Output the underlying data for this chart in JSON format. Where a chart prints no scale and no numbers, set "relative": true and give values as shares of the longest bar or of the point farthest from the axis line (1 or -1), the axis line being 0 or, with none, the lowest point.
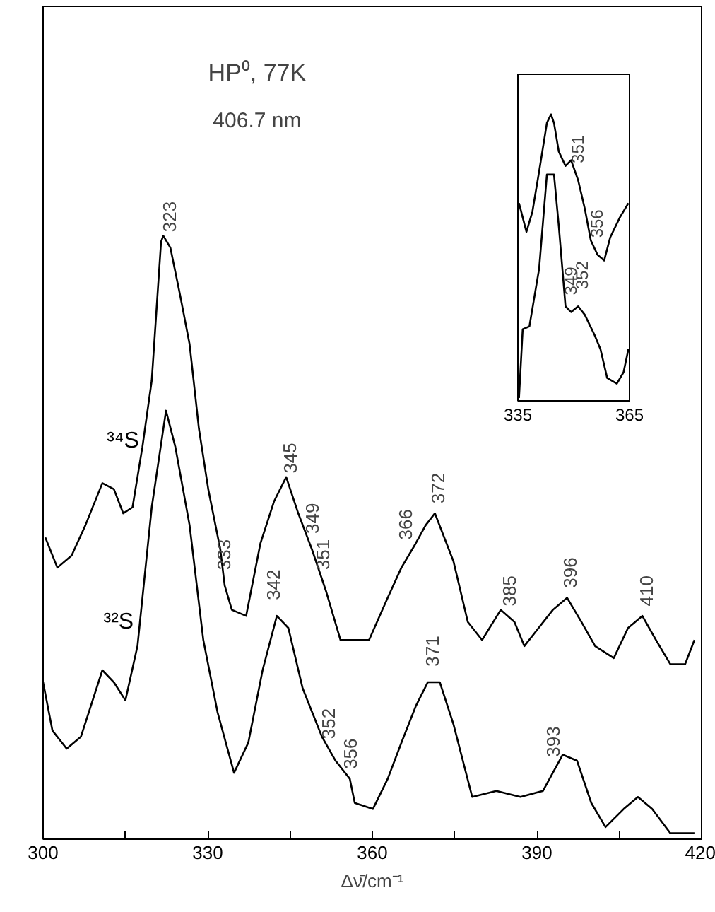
{
  "chart_data": [
    {
      "type": "line",
      "title": "HP⁰, 77K",
      "subtitle": "406.7 nm",
      "xlabel": "Δν̄/cm⁻¹",
      "relative": true,
      "xlim": [
        300,
        420
      ],
      "xticks": [
        300,
        {
          "value": 315,
          "label": null
        },
        330,
        {
          "value": 345,
          "label": null
        },
        360,
        {
          "value": 375,
          "label": null
        },
        390,
        {
          "value": 405,
          "label": null
        },
        420
      ],
      "tick_labels": "x",
      "grid": false,
      "series": [
        {
          "name": "³⁴S",
          "color": "#000000",
          "x": [
            300.4,
            302.6,
            305.2,
            307.7,
            310.8,
            312.9,
            314.6,
            316.3,
            318.1,
            319.8,
            321.5,
            321.9,
            323.2,
            325.0,
            326.7,
            328.4,
            330.1,
            332.3,
            333.1,
            334.4,
            337.0,
            339.6,
            342.1,
            344.3,
            346.5,
            349.0,
            351.6,
            354.2,
            356.8,
            359.4,
            362.8,
            365.3,
            367.9,
            369.7,
            371.4,
            373.1,
            374.8,
            377.4,
            380.0,
            383.4,
            385.9,
            387.7,
            390.3,
            392.9,
            395.5,
            398.1,
            400.6,
            404.0,
            406.6,
            409.2,
            411.7,
            414.3,
            417.0,
            418.7
          ],
          "values": [
            0.5,
            0.45,
            0.47,
            0.52,
            0.59,
            0.58,
            0.54,
            0.55,
            0.65,
            0.76,
            0.99,
            1.0,
            0.98,
            0.9,
            0.82,
            0.68,
            0.58,
            0.48,
            0.42,
            0.38,
            0.37,
            0.49,
            0.56,
            0.6,
            0.54,
            0.48,
            0.41,
            0.33,
            0.33,
            0.33,
            0.4,
            0.45,
            0.49,
            0.52,
            0.54,
            0.5,
            0.46,
            0.36,
            0.33,
            0.38,
            0.36,
            0.32,
            0.35,
            0.38,
            0.4,
            0.36,
            0.32,
            0.3,
            0.35,
            0.37,
            0.33,
            0.29,
            0.29,
            0.33
          ]
        },
        {
          "name": "³²S",
          "color": "#000000",
          "x": [
            300.0,
            301.7,
            304.3,
            306.9,
            310.8,
            312.9,
            315.0,
            317.2,
            319.8,
            322.4,
            324.1,
            326.7,
            329.2,
            331.8,
            334.8,
            337.4,
            340.0,
            342.6,
            344.7,
            347.3,
            350.8,
            353.3,
            355.9,
            356.8,
            360.1,
            362.8,
            365.3,
            367.9,
            370.1,
            372.3,
            374.8,
            378.2,
            382.6,
            387.0,
            391.1,
            394.7,
            397.3,
            399.9,
            402.5,
            405.8,
            408.4,
            411.0,
            414.3,
            418.7
          ],
          "values": [
            0.26,
            0.18,
            0.15,
            0.17,
            0.28,
            0.26,
            0.23,
            0.32,
            0.55,
            0.71,
            0.65,
            0.52,
            0.33,
            0.21,
            0.11,
            0.16,
            0.28,
            0.37,
            0.35,
            0.25,
            0.17,
            0.13,
            0.1,
            0.06,
            0.05,
            0.1,
            0.16,
            0.22,
            0.26,
            0.26,
            0.19,
            0.07,
            0.08,
            0.07,
            0.08,
            0.14,
            0.13,
            0.06,
            0.02,
            0.05,
            0.07,
            0.05,
            0.01,
            0.01
          ]
        }
      ],
      "annotations": [
        {
          "text": "323",
          "x": 323,
          "y": 0.98
        },
        {
          "text": "345",
          "x": 345,
          "y": 0.58
        },
        {
          "text": "349",
          "x": 349,
          "y": 0.48
        },
        {
          "text": "333",
          "x": 333,
          "y": 0.42
        },
        {
          "text": "351",
          "x": 351,
          "y": 0.42
        },
        {
          "text": "366",
          "x": 366,
          "y": 0.47
        },
        {
          "text": "372",
          "x": 372,
          "y": 0.53
        },
        {
          "text": "385",
          "x": 385,
          "y": 0.36
        },
        {
          "text": "396",
          "x": 396,
          "y": 0.39
        },
        {
          "text": "410",
          "x": 410,
          "y": 0.36
        },
        {
          "text": "342",
          "x": 342,
          "y": 0.37
        },
        {
          "text": "352",
          "x": 352,
          "y": 0.14
        },
        {
          "text": "356",
          "x": 356,
          "y": 0.09
        },
        {
          "text": "371",
          "x": 371,
          "y": 0.26
        },
        {
          "text": "393",
          "x": 393,
          "y": 0.11
        }
      ]
    },
    {
      "type": "line",
      "relative": true,
      "xlim": [
        335,
        365
      ],
      "xticks": [
        335,
        365
      ],
      "tick_labels": "x",
      "grid": false,
      "series": [
        {
          "color": "#000000",
          "x": [
            335.3,
            337.3,
            338.9,
            340.7,
            342.8,
            343.9,
            344.7,
            346.0,
            347.8,
            349.3,
            351.2,
            353.0,
            354.6,
            356.4,
            358.2,
            359.8,
            362.4,
            364.7
          ],
          "values": [
            0.69,
            0.59,
            0.66,
            0.8,
            0.97,
            1.0,
            0.97,
            0.87,
            0.82,
            0.84,
            0.77,
            0.67,
            0.56,
            0.51,
            0.49,
            0.57,
            0.64,
            0.69
          ]
        },
        {
          "color": "#000000",
          "x": [
            335.3,
            336.3,
            338.1,
            340.7,
            342.8,
            344.7,
            346.0,
            347.8,
            349.3,
            351.2,
            353.0,
            355.6,
            357.2,
            359.0,
            361.6,
            363.4,
            364.7
          ],
          "values": [
            0.01,
            0.25,
            0.26,
            0.46,
            0.79,
            0.79,
            0.61,
            0.33,
            0.31,
            0.33,
            0.3,
            0.23,
            0.18,
            0.08,
            0.06,
            0.1,
            0.18
          ]
        }
      ],
      "annotations": [
        {
          "text": "351",
          "x": 351,
          "y": 0.77
        },
        {
          "text": "356",
          "x": 356,
          "y": 0.51
        },
        {
          "text": "349",
          "x": 349,
          "y": 0.31
        },
        {
          "text": "352",
          "x": 352,
          "y": 0.33
        }
      ]
    }
  ]
}
